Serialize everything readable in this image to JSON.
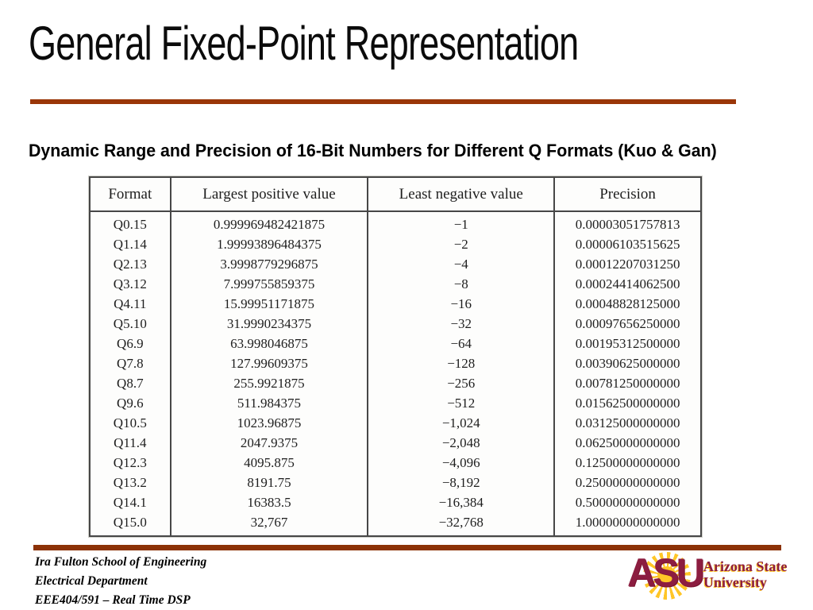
{
  "slide": {
    "title": "General Fixed-Point Representation",
    "subtitle": "Dynamic Range and Precision of 16-Bit Numbers for Different Q Formats (Kuo & Gan)"
  },
  "table": {
    "headers": [
      "Format",
      "Largest positive value",
      "Least negative value",
      "Precision"
    ],
    "rows": [
      [
        "Q0.15",
        "0.999969482421875",
        "−1",
        "0.00003051757813"
      ],
      [
        "Q1.14",
        "1.99993896484375",
        "−2",
        "0.00006103515625"
      ],
      [
        "Q2.13",
        "3.9998779296875",
        "−4",
        "0.00012207031250"
      ],
      [
        "Q3.12",
        "7.999755859375",
        "−8",
        "0.00024414062500"
      ],
      [
        "Q4.11",
        "15.99951171875",
        "−16",
        "0.00048828125000"
      ],
      [
        "Q5.10",
        "31.9990234375",
        "−32",
        "0.00097656250000"
      ],
      [
        "Q6.9",
        "63.998046875",
        "−64",
        "0.00195312500000"
      ],
      [
        "Q7.8",
        "127.99609375",
        "−128",
        "0.00390625000000"
      ],
      [
        "Q8.7",
        "255.9921875",
        "−256",
        "0.00781250000000"
      ],
      [
        "Q9.6",
        "511.984375",
        "−512",
        "0.01562500000000"
      ],
      [
        "Q10.5",
        "1023.96875",
        "−1,024",
        "0.03125000000000"
      ],
      [
        "Q11.4",
        "2047.9375",
        "−2,048",
        "0.06250000000000"
      ],
      [
        "Q12.3",
        "4095.875",
        "−4,096",
        "0.12500000000000"
      ],
      [
        "Q13.2",
        "8191.75",
        "−8,192",
        "0.25000000000000"
      ],
      [
        "Q14.1",
        "16383.5",
        "−16,384",
        "0.50000000000000"
      ],
      [
        "Q15.0",
        "32,767",
        "−32,768",
        "1.00000000000000"
      ]
    ]
  },
  "footer": {
    "lines": [
      "Ira Fulton School of Engineering",
      "Electrical Department",
      "EEE404/591 – Real Time DSP"
    ],
    "logo": {
      "acronym": "ASU",
      "name_line1": "Arizona State",
      "name_line2": "University"
    }
  },
  "colors": {
    "accent_rule": "#9a3608",
    "footer_rule": "#8c3207",
    "asu_maroon": "#8c1d40",
    "asu_gold": "#ffc627"
  }
}
